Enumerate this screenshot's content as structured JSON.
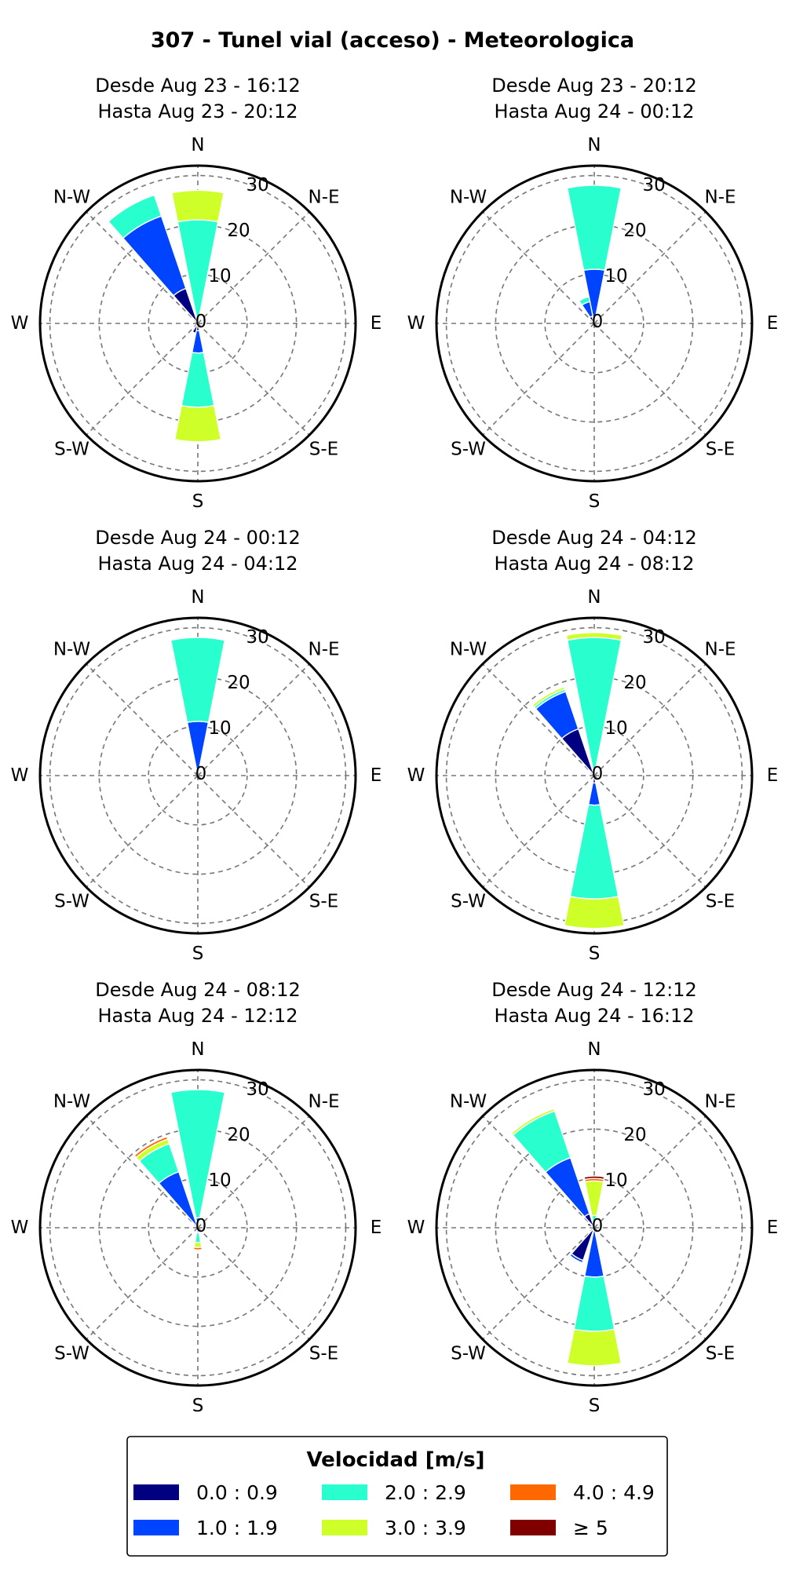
{
  "title": "307 - Tunel vial (acceso) - Meteorologica",
  "chart_data": [
    {
      "type": "windrose",
      "label_from": "Desde Aug 23 - 16:12",
      "label_to": "Hasta Aug 23 - 20:12",
      "directions": [
        "N",
        "N-E",
        "E",
        "S-E",
        "S",
        "S-W",
        "W",
        "N-W"
      ],
      "radial_ticks": [
        0,
        10,
        20,
        30
      ],
      "rmax": 32,
      "bars": [
        {
          "angle": 0,
          "values": [
            0.5,
            0.5,
            20,
            6,
            0,
            0
          ]
        },
        {
          "angle": 337.5,
          "values": [
            0.5,
            0.5,
            0.5,
            0,
            0,
            0
          ]
        },
        {
          "angle": 330,
          "values": [
            7.5,
            15.5,
            4.5,
            0,
            0,
            0
          ]
        },
        {
          "angle": 202.5,
          "values": [
            2,
            0,
            0,
            0,
            0,
            0
          ]
        },
        {
          "angle": 180,
          "values": [
            1.5,
            4.5,
            11,
            7,
            0,
            0
          ]
        }
      ]
    },
    {
      "type": "windrose",
      "label_from": "Desde Aug 23 - 20:12",
      "label_to": "Hasta Aug 24 - 00:12",
      "directions": [
        "N",
        "N-E",
        "E",
        "S-E",
        "S",
        "S-W",
        "W",
        "N-W"
      ],
      "radial_ticks": [
        0,
        10,
        20,
        30
      ],
      "rmax": 32,
      "bars": [
        {
          "angle": 0,
          "values": [
            1,
            10,
            17,
            0,
            0,
            0
          ]
        },
        {
          "angle": 337.5,
          "values": [
            0.5,
            4,
            1,
            0,
            0,
            0
          ]
        },
        {
          "angle": 330,
          "values": [
            1.5,
            0,
            0,
            0,
            0,
            0
          ]
        }
      ]
    },
    {
      "type": "windrose",
      "label_from": "Desde Aug 24 - 00:12",
      "label_to": "Hasta Aug 24 - 04:12",
      "directions": [
        "N",
        "N-E",
        "E",
        "S-E",
        "S",
        "S-W",
        "W",
        "N-W"
      ],
      "radial_ticks": [
        0,
        10,
        20,
        30
      ],
      "rmax": 32,
      "bars": [
        {
          "angle": 0,
          "values": [
            1,
            10,
            17,
            0,
            0,
            0
          ]
        }
      ]
    },
    {
      "type": "windrose",
      "label_from": "Desde Aug 24 - 04:12",
      "label_to": "Hasta Aug 24 - 08:12",
      "directions": [
        "N",
        "N-E",
        "E",
        "S-E",
        "S",
        "S-W",
        "W",
        "N-W"
      ],
      "radial_ticks": [
        0,
        10,
        20,
        30
      ],
      "rmax": 32,
      "bars": [
        {
          "angle": 0,
          "values": [
            1,
            0.5,
            26.5,
            1,
            0,
            0
          ]
        },
        {
          "angle": 330,
          "values": [
            10,
            8,
            0.5,
            0.5,
            0,
            0
          ]
        },
        {
          "angle": 180,
          "values": [
            1.5,
            4.5,
            19,
            6,
            0,
            0
          ]
        }
      ]
    },
    {
      "type": "windrose",
      "label_from": "Desde Aug 24 - 08:12",
      "label_to": "Hasta Aug 24 - 12:12",
      "directions": [
        "N",
        "N-E",
        "E",
        "S-E",
        "S",
        "S-W",
        "W",
        "N-W"
      ],
      "radial_ticks": [
        0,
        10,
        20,
        30
      ],
      "rmax": 32,
      "bars": [
        {
          "angle": 0,
          "values": [
            0.5,
            1.5,
            26,
            0,
            0,
            0
          ]
        },
        {
          "angle": 330,
          "values": [
            0.5,
            11.5,
            6,
            1,
            0.5,
            0
          ]
        },
        {
          "angle": 180,
          "values": [
            0.5,
            0.5,
            2,
            1,
            0.5,
            0
          ]
        }
      ]
    },
    {
      "type": "windrose",
      "label_from": "Desde Aug 24 - 12:12",
      "label_to": "Hasta Aug 24 - 16:12",
      "directions": [
        "N",
        "N-E",
        "E",
        "S-E",
        "S",
        "S-W",
        "W",
        "N-W"
      ],
      "radial_ticks": [
        0,
        10,
        20,
        30
      ],
      "rmax": 32,
      "bars": [
        {
          "angle": 0,
          "values": [
            0.5,
            0.5,
            1.5,
            7,
            0.5,
            0.5
          ]
        },
        {
          "angle": 330,
          "values": [
            3,
            12,
            10,
            0.5,
            0,
            0
          ]
        },
        {
          "angle": 300,
          "values": [
            1.5,
            0,
            0,
            0,
            0,
            0
          ]
        },
        {
          "angle": 210,
          "values": [
            7,
            0.5,
            0,
            0,
            0,
            0
          ]
        },
        {
          "angle": 180,
          "values": [
            0.5,
            9.5,
            11,
            7,
            0,
            0
          ]
        }
      ]
    }
  ],
  "legend": {
    "title": "Velocidad [m/s]",
    "items": [
      {
        "label": "0.0 : 0.9",
        "color": "#000080"
      },
      {
        "label": "1.0 : 1.9",
        "color": "#0044ff"
      },
      {
        "label": "2.0 : 2.9",
        "color": "#29ffce"
      },
      {
        "label": "3.0 : 3.9",
        "color": "#ceff29"
      },
      {
        "label": "4.0 : 4.9",
        "color": "#ff6800"
      },
      {
        "label": "≥  5",
        "color": "#800000"
      }
    ]
  }
}
